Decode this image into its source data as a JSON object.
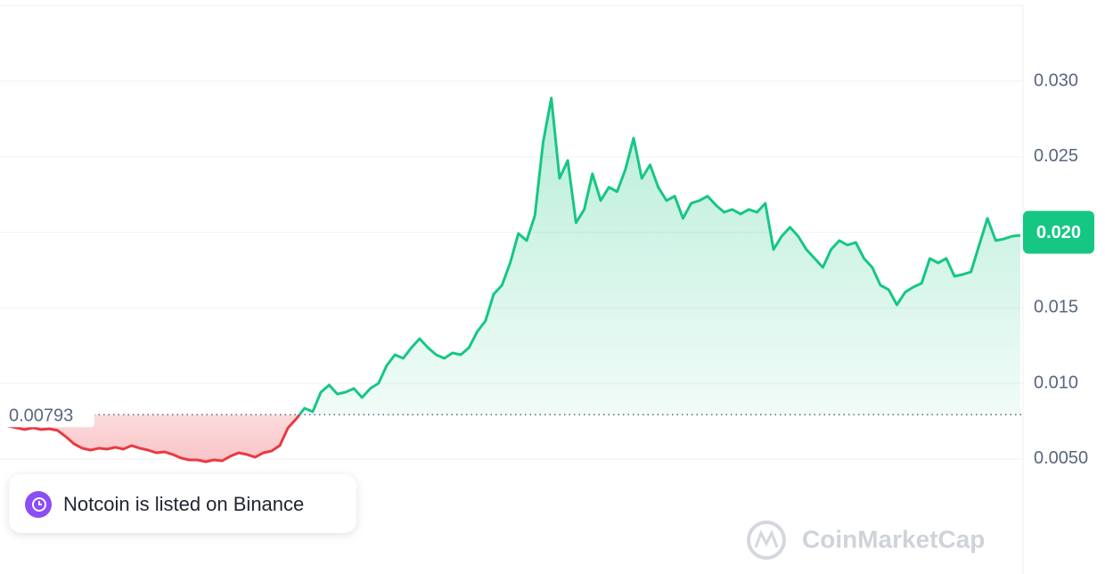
{
  "chart_data": {
    "type": "line",
    "values": [
      0.00736,
      0.00718,
      0.00706,
      0.00695,
      0.00706,
      0.00695,
      0.007,
      0.00689,
      0.00648,
      0.006,
      0.00571,
      0.00559,
      0.00571,
      0.00565,
      0.00577,
      0.00565,
      0.00589,
      0.00571,
      0.00559,
      0.00541,
      0.00547,
      0.0053,
      0.00506,
      0.00494,
      0.00494,
      0.00482,
      0.00494,
      0.00488,
      0.00518,
      0.00541,
      0.0053,
      0.00512,
      0.00541,
      0.00553,
      0.00589,
      0.00706,
      0.00765,
      0.00836,
      0.00813,
      0.00942,
      0.00989,
      0.0093,
      0.00942,
      0.00966,
      0.00907,
      0.00966,
      0.01001,
      0.01119,
      0.0119,
      0.01166,
      0.01237,
      0.01296,
      0.01237,
      0.0119,
      0.01166,
      0.01202,
      0.0119,
      0.01237,
      0.01343,
      0.01414,
      0.01591,
      0.0165,
      0.01797,
      0.01992,
      0.01945,
      0.0211,
      0.02593,
      0.02888,
      0.02357,
      0.02475,
      0.02063,
      0.02151,
      0.02387,
      0.0221,
      0.02298,
      0.02269,
      0.02416,
      0.02623,
      0.02357,
      0.02446,
      0.02298,
      0.0221,
      0.02239,
      0.02092,
      0.02192,
      0.0221,
      0.02239,
      0.0218,
      0.02133,
      0.02151,
      0.02121,
      0.02151,
      0.02133,
      0.02192,
      0.01886,
      0.01974,
      0.02033,
      0.01974,
      0.01886,
      0.01827,
      0.01768,
      0.01886,
      0.01945,
      0.01915,
      0.01933,
      0.01827,
      0.01768,
      0.0165,
      0.0162,
      0.0152,
      0.01603,
      0.01638,
      0.01662,
      0.01827,
      0.01797,
      0.01827,
      0.01709,
      0.01721,
      0.01738,
      0.01915,
      0.02092,
      0.01945,
      0.01956,
      0.01974,
      0.0198
    ],
    "color_up": "#16c784",
    "color_down": "#ea3943",
    "baseline": 0.00793,
    "last_price": {
      "value": 0.02,
      "label": "0.020"
    },
    "ylim": [
      -0.00261,
      0.03537
    ],
    "yticks": [
      {
        "value": 0.005,
        "label": "0.0050"
      },
      {
        "value": 0.01,
        "label": "0.010"
      },
      0.015,
      {
        "value": 0.02,
        "label": "0.020"
      },
      0.025,
      {
        "value": 0.03,
        "label": "0.030"
      }
    ],
    "grid": true,
    "annotation": "Notcoin is listed on Binance",
    "watermark": "CoinMarketCap"
  }
}
